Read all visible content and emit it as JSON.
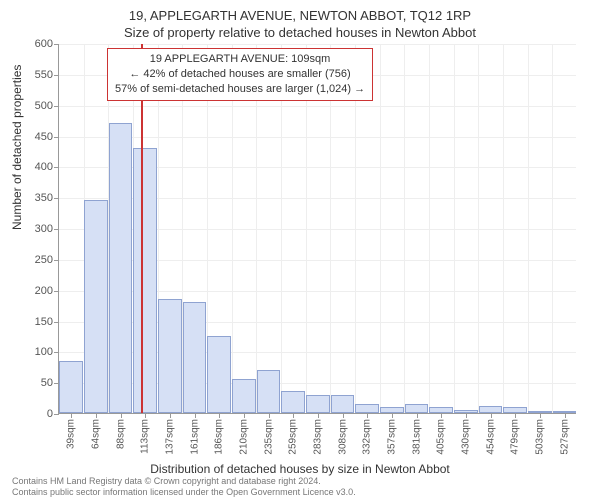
{
  "title_main": "19, APPLEGARTH AVENUE, NEWTON ABBOT, TQ12 1RP",
  "title_sub": "Size of property relative to detached houses in Newton Abbot",
  "ylabel": "Number of detached properties",
  "xlabel": "Distribution of detached houses by size in Newton Abbot",
  "chart": {
    "type": "histogram",
    "ylim": [
      0,
      600
    ],
    "ytick_step": 50,
    "x_categories": [
      "39sqm",
      "64sqm",
      "88sqm",
      "113sqm",
      "137sqm",
      "161sqm",
      "186sqm",
      "210sqm",
      "235sqm",
      "259sqm",
      "283sqm",
      "308sqm",
      "332sqm",
      "357sqm",
      "381sqm",
      "405sqm",
      "430sqm",
      "454sqm",
      "479sqm",
      "503sqm",
      "527sqm"
    ],
    "values": [
      85,
      345,
      470,
      430,
      185,
      180,
      125,
      55,
      70,
      35,
      30,
      30,
      15,
      10,
      15,
      10,
      5,
      12,
      10,
      3,
      3
    ],
    "bar_fill": "#d6e0f5",
    "bar_border": "#8fa3d1",
    "grid_color": "#eeeeee",
    "axis_color": "#999999",
    "background": "#ffffff",
    "reference_value_sqm": 109,
    "reference_color": "#cc3333"
  },
  "annotation": {
    "line1": "19 APPLEGARTH AVENUE: 109sqm",
    "line2": "← 42% of detached houses are smaller (756)",
    "line3": "57% of semi-detached houses are larger (1,024) →",
    "border_color": "#cc3333",
    "background": "#ffffff"
  },
  "footer": {
    "line1": "Contains HM Land Registry data © Crown copyright and database right 2024.",
    "line2": "Contains public sector information licensed under the Open Government Licence v3.0."
  },
  "fonts": {
    "title_size_pt": 13,
    "axis_label_size_pt": 12,
    "tick_size_pt": 11,
    "anno_size_pt": 11,
    "footer_size_pt": 9
  }
}
